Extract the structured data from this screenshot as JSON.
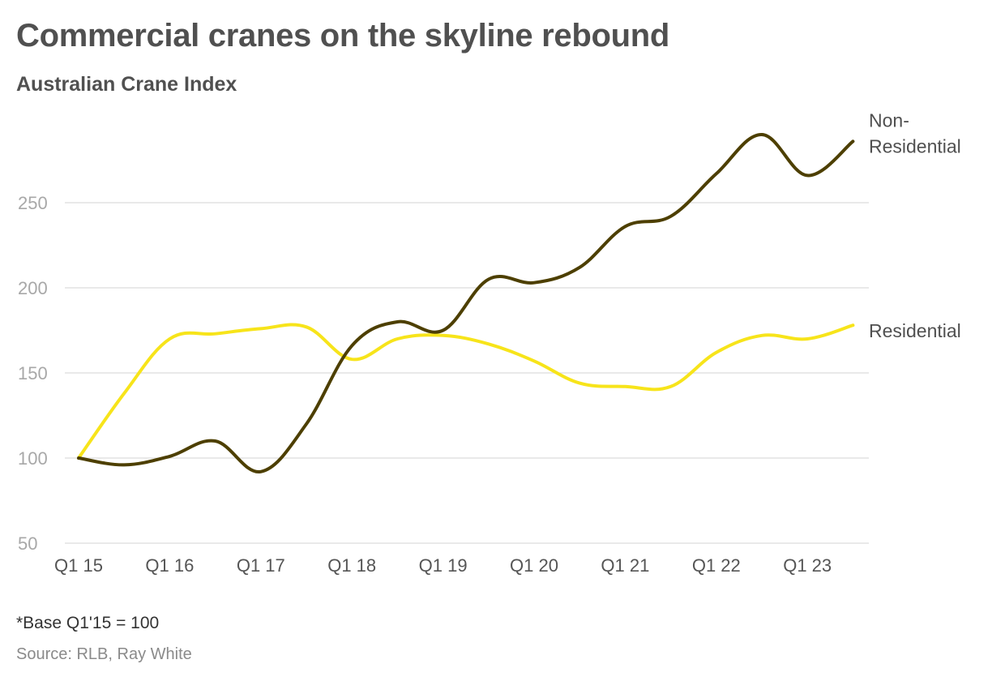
{
  "title": "Commercial cranes on the skyline rebound",
  "subtitle": "Australian Crane Index",
  "note": "*Base Q1'15 = 100",
  "source": "Source: RLB, Ray White",
  "colors": {
    "non_residential": "#4d3f00",
    "residential": "#f7e41a"
  },
  "chart_data": {
    "type": "line",
    "title": "Commercial cranes on the skyline rebound",
    "subtitle": "Australian Crane Index",
    "xlabel": "",
    "ylabel": "",
    "x": [
      "Q1 15",
      "Q3 15",
      "Q1 16",
      "Q3 16",
      "Q1 17",
      "Q3 17",
      "Q1 18",
      "Q3 18",
      "Q1 19",
      "Q3 19",
      "Q1 20",
      "Q3 20",
      "Q1 21",
      "Q3 21",
      "Q1 22",
      "Q3 22",
      "Q1 23",
      "Q3 23"
    ],
    "x_tick_labels": [
      "Q1 15",
      "Q1 16",
      "Q1 17",
      "Q1 18",
      "Q1 19",
      "Q1 20",
      "Q1 21",
      "Q1 22",
      "Q1 23"
    ],
    "y_ticks": [
      50,
      100,
      150,
      200,
      250
    ],
    "ylim": [
      50,
      300
    ],
    "grid": true,
    "series": [
      {
        "name": "Non-Residential",
        "label_lines": [
          "Non-",
          "Residential"
        ],
        "values": [
          100,
          96,
          101,
          110,
          92,
          120,
          166,
          180,
          175,
          205,
          203,
          212,
          236,
          242,
          267,
          290,
          266,
          286
        ]
      },
      {
        "name": "Residential",
        "label_lines": [
          "Residential"
        ],
        "values": [
          100,
          138,
          170,
          173,
          176,
          177,
          158,
          170,
          172,
          167,
          157,
          144,
          142,
          142,
          162,
          172,
          170,
          178
        ]
      }
    ]
  }
}
